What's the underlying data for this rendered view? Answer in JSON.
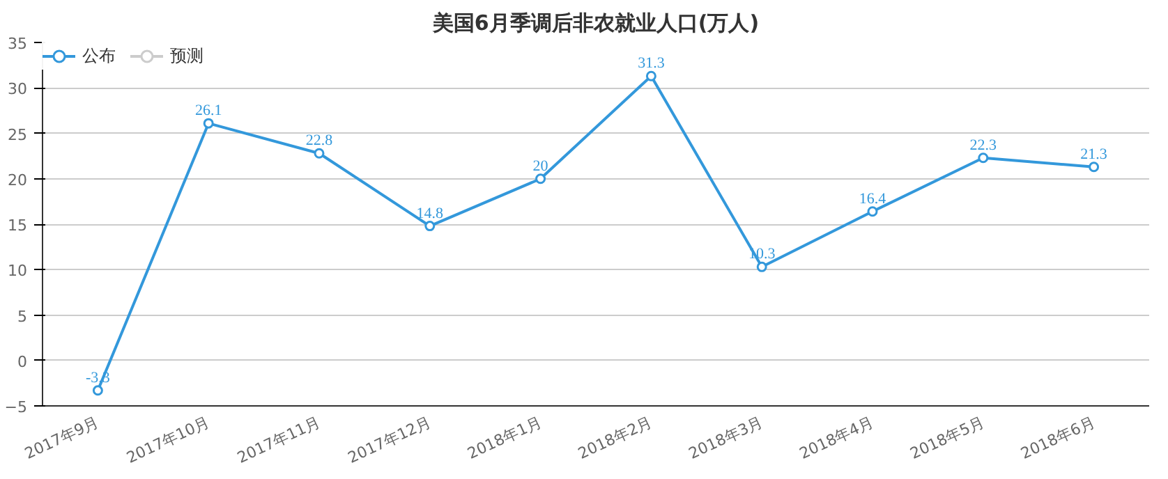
{
  "chart_data": {
    "type": "line",
    "title": "美国6月季调后非农就业人口(万人)",
    "categories": [
      "2017年9月",
      "2017年10月",
      "2017年11月",
      "2017年12月",
      "2018年1月",
      "2018年2月",
      "2018年3月",
      "2018年4月",
      "2018年5月",
      "2018年6月"
    ],
    "series": [
      {
        "name": "公布",
        "color": "#3398db",
        "values": [
          -3.3,
          26.1,
          22.8,
          14.8,
          20,
          31.3,
          10.3,
          16.4,
          22.3,
          21.3
        ],
        "data_labels": true
      },
      {
        "name": "预测",
        "color": "#cccccc",
        "values": [
          null,
          null,
          null,
          null,
          null,
          null,
          null,
          null,
          null,
          null
        ]
      }
    ],
    "ylim": [
      -5,
      35
    ],
    "yticks": [
      -5,
      0,
      5,
      10,
      15,
      20,
      25,
      30,
      35
    ],
    "grid": "y",
    "legend": "top left",
    "marker": "circle"
  }
}
